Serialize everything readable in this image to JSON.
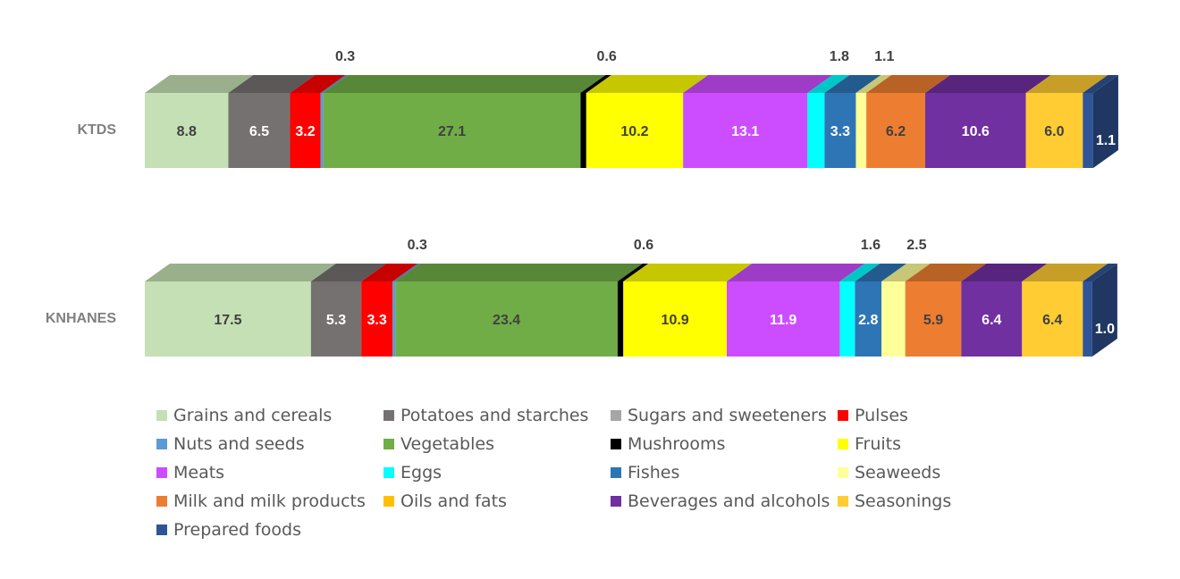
{
  "chart_data": {
    "type": "stacked-bar-horizontal-3d",
    "title": "",
    "categories": [
      "KTDS",
      "KNHANES"
    ],
    "series": [
      {
        "name": "Grains and cereals",
        "color": "#c5e0b4",
        "values": [
          8.8,
          17.5
        ],
        "label_color": "#404040"
      },
      {
        "name": "Potatoes and starches",
        "color": "#767171",
        "values": [
          6.5,
          5.3
        ],
        "label_color": "#ffffff"
      },
      {
        "name": "Sugars and sweeteners",
        "color": "#a6a6a6",
        "values": [
          0.0,
          0.0
        ],
        "label_color": "#404040"
      },
      {
        "name": "Pulses",
        "color": "#ff0000",
        "values": [
          3.2,
          3.3
        ],
        "label_color": "#ffffff"
      },
      {
        "name": "Nuts and seeds",
        "color": "#5b9bd5",
        "values": [
          0.3,
          0.3
        ],
        "label_color": "#404040"
      },
      {
        "name": "Vegetables",
        "color": "#70ad47",
        "values": [
          27.1,
          23.4
        ],
        "label_color": "#404040"
      },
      {
        "name": "Mushrooms",
        "color": "#000000",
        "values": [
          0.6,
          0.6
        ],
        "label_color": "#404040"
      },
      {
        "name": "Fruits",
        "color": "#ffff00",
        "values": [
          10.2,
          10.9
        ],
        "label_color": "#404040"
      },
      {
        "name": "Meats",
        "color": "#cc4dff",
        "values": [
          13.1,
          11.9
        ],
        "label_color": "#ffffff"
      },
      {
        "name": "Eggs",
        "color": "#00ffff",
        "values": [
          1.8,
          1.6
        ],
        "label_color": "#404040"
      },
      {
        "name": "Fishes",
        "color": "#2e75b6",
        "values": [
          3.3,
          2.8
        ],
        "label_color": "#ffffff"
      },
      {
        "name": "Seaweeds",
        "color": "#ffff99",
        "values": [
          1.1,
          2.5
        ],
        "label_color": "#404040"
      },
      {
        "name": "Milk and milk products",
        "color": "#ed7d31",
        "values": [
          6.2,
          5.9
        ],
        "label_color": "#404040"
      },
      {
        "name": "Oils and fats",
        "color": "#ffc000",
        "values": [
          0.0,
          0.0
        ],
        "label_color": "#404040"
      },
      {
        "name": "Beverages and alcohols",
        "color": "#7030a0",
        "values": [
          10.6,
          6.4
        ],
        "label_color": "#ffffff"
      },
      {
        "name": "Seasonings",
        "color": "#ffcc33",
        "values": [
          6.0,
          6.4
        ],
        "label_color": "#404040"
      },
      {
        "name": "Prepared foods",
        "color": "#2f5597",
        "values": [
          1.1,
          1.0
        ],
        "label_color": "#ffffff"
      }
    ],
    "data_labels": {
      "KTDS": [
        "8.8",
        "6.5",
        "3.2",
        "0.3",
        "27.1",
        "0.6",
        "10.2",
        "13.1",
        "1.8",
        "3.3",
        "1.1",
        "6.2",
        "10.6",
        "6.0",
        "1.1"
      ],
      "KNHANES": [
        "17.5",
        "5.3",
        "3.3",
        "0.3",
        "23.4",
        "0.6",
        "10.9",
        "11.9",
        "1.6",
        "2.8",
        "2.5",
        "5.9",
        "6.4",
        "6.4",
        "1.0"
      ]
    },
    "xlim": [
      0,
      100
    ],
    "legend_position": "bottom"
  }
}
